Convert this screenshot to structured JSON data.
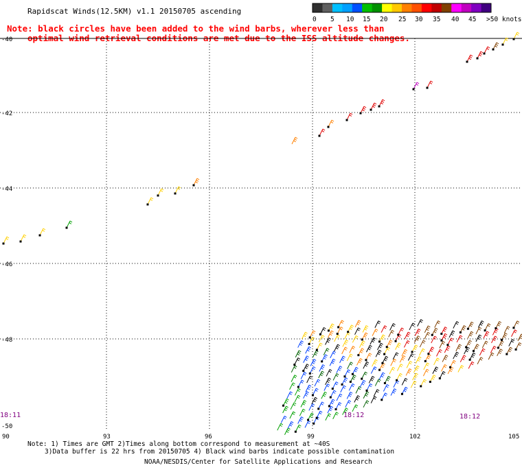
{
  "header": {
    "title": "Rapidscat Winds(12.5KM) v1.1 20150705 ascending",
    "note_line1": "Note: black circles have been added to the wind barbs, wherever less than",
    "note_line2": "optimal wind retrieval conditions are met due to the ISS altitude changes."
  },
  "legend": {
    "labels": [
      "0",
      "5",
      "10",
      "15",
      "20",
      "25",
      "30",
      "35",
      "40",
      "45",
      ">50 knots"
    ],
    "colors": [
      "#303030",
      "#606060",
      "#00c0ff",
      "#00a0ff",
      "#0050ff",
      "#00c000",
      "#009000",
      "#ffff00",
      "#ffc800",
      "#ff8000",
      "#ff5000",
      "#ff0000",
      "#c00000",
      "#804000",
      "#ff00ff",
      "#c000c0",
      "#8000c0",
      "#400080"
    ]
  },
  "map": {
    "lat_labels": [
      "-40",
      "-42",
      "-44",
      "-46",
      "-48",
      "-50"
    ],
    "lon_labels": [
      "90",
      "93",
      "96",
      "99",
      "102",
      "105"
    ],
    "time_labels": [
      "18:11",
      "18:12",
      "18:12"
    ]
  },
  "footer": {
    "note1": "Note: 1) Times are GMT 2)Times along bottom correspond to measurement at ~40S",
    "note2": "3)Data buffer is 22 hrs from 20150705 4) Black wind barbs indicate possible contamination",
    "credit": "NOAA/NESDIS/Center for Satellite Applications and Research"
  }
}
